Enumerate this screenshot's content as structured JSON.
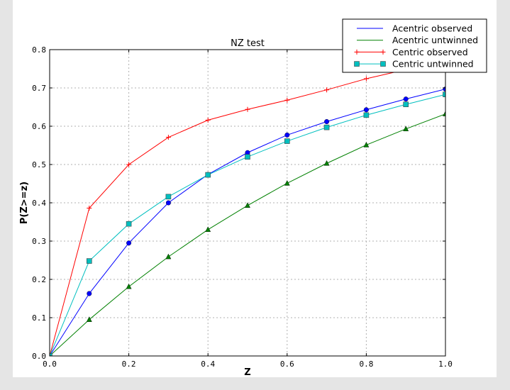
{
  "chart_data": {
    "type": "line",
    "title": "NZ test",
    "xlabel": "Z",
    "ylabel": "P(Z>=z)",
    "xlim": [
      0.0,
      1.0
    ],
    "ylim": [
      0.0,
      0.8
    ],
    "xticks": [
      "0.0",
      "0.2",
      "0.4",
      "0.6",
      "0.8",
      "1.0"
    ],
    "yticks": [
      "0.0",
      "0.1",
      "0.2",
      "0.3",
      "0.4",
      "0.5",
      "0.6",
      "0.7",
      "0.8"
    ],
    "grid": true,
    "legend_placement": "top-right",
    "x": [
      0.0,
      0.1,
      0.2,
      0.3,
      0.4,
      0.5,
      0.6,
      0.7,
      0.8,
      0.9,
      1.0
    ],
    "series": [
      {
        "name": "Acentric observed",
        "color": "#0000ff",
        "marker": "circle",
        "values": [
          0.0,
          0.163,
          0.295,
          0.4,
          0.474,
          0.531,
          0.577,
          0.612,
          0.643,
          0.671,
          0.697
        ]
      },
      {
        "name": "Acentric untwinned",
        "color": "#008000",
        "marker": "triangle",
        "values": [
          0.0,
          0.095,
          0.181,
          0.259,
          0.33,
          0.393,
          0.451,
          0.503,
          0.551,
          0.593,
          0.632
        ]
      },
      {
        "name": "Centric observed",
        "color": "#ff0000",
        "marker": "plus",
        "values": [
          0.0,
          0.386,
          0.5,
          0.571,
          0.616,
          0.644,
          0.668,
          0.695,
          0.724,
          0.748,
          0.77
        ]
      },
      {
        "name": "Centric untwinned",
        "color": "#00bfbf",
        "marker": "square",
        "values": [
          0.0,
          0.248,
          0.345,
          0.416,
          0.473,
          0.52,
          0.561,
          0.597,
          0.629,
          0.657,
          0.683
        ]
      }
    ]
  }
}
